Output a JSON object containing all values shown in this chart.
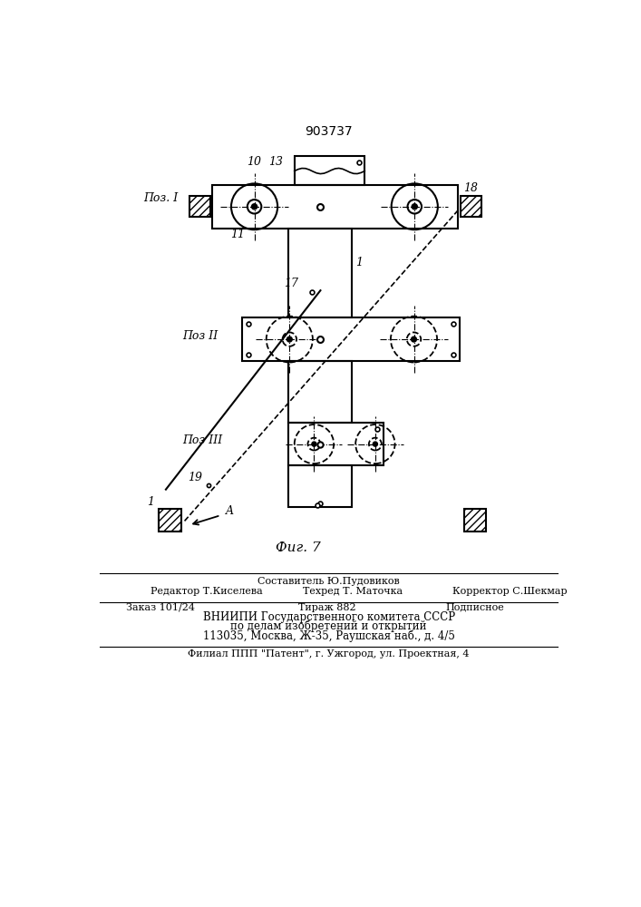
{
  "title": "903737",
  "fig_label": "Фиг. 7",
  "bg_color": "#ffffff",
  "line_color": "#000000",
  "pos1_label": "Поз. I",
  "pos2_label": "Поз II",
  "pos3_label": "Поз III",
  "footer_line0": "Составитель Ю.Пудовиков",
  "footer_line1a": "Редактор Т.Киселева",
  "footer_line1b": "Техред Т. Маточка",
  "footer_line1c": "Корректор С.Шекмар",
  "footer_line2a": "Заказ 101/24",
  "footer_line2b": "Тираж 882",
  "footer_line2c": "Подписное",
  "footer_line3": "ВНИИПИ Государственного комитета СССР",
  "footer_line4": "по делам изобретений и открытий",
  "footer_line5": "113035, Москва, Ж-35, Раушская наб., д. 4/5",
  "footer_line6": "Филиал ППП \"Патент\", г. Ужгород, ул. Проектная, 4"
}
